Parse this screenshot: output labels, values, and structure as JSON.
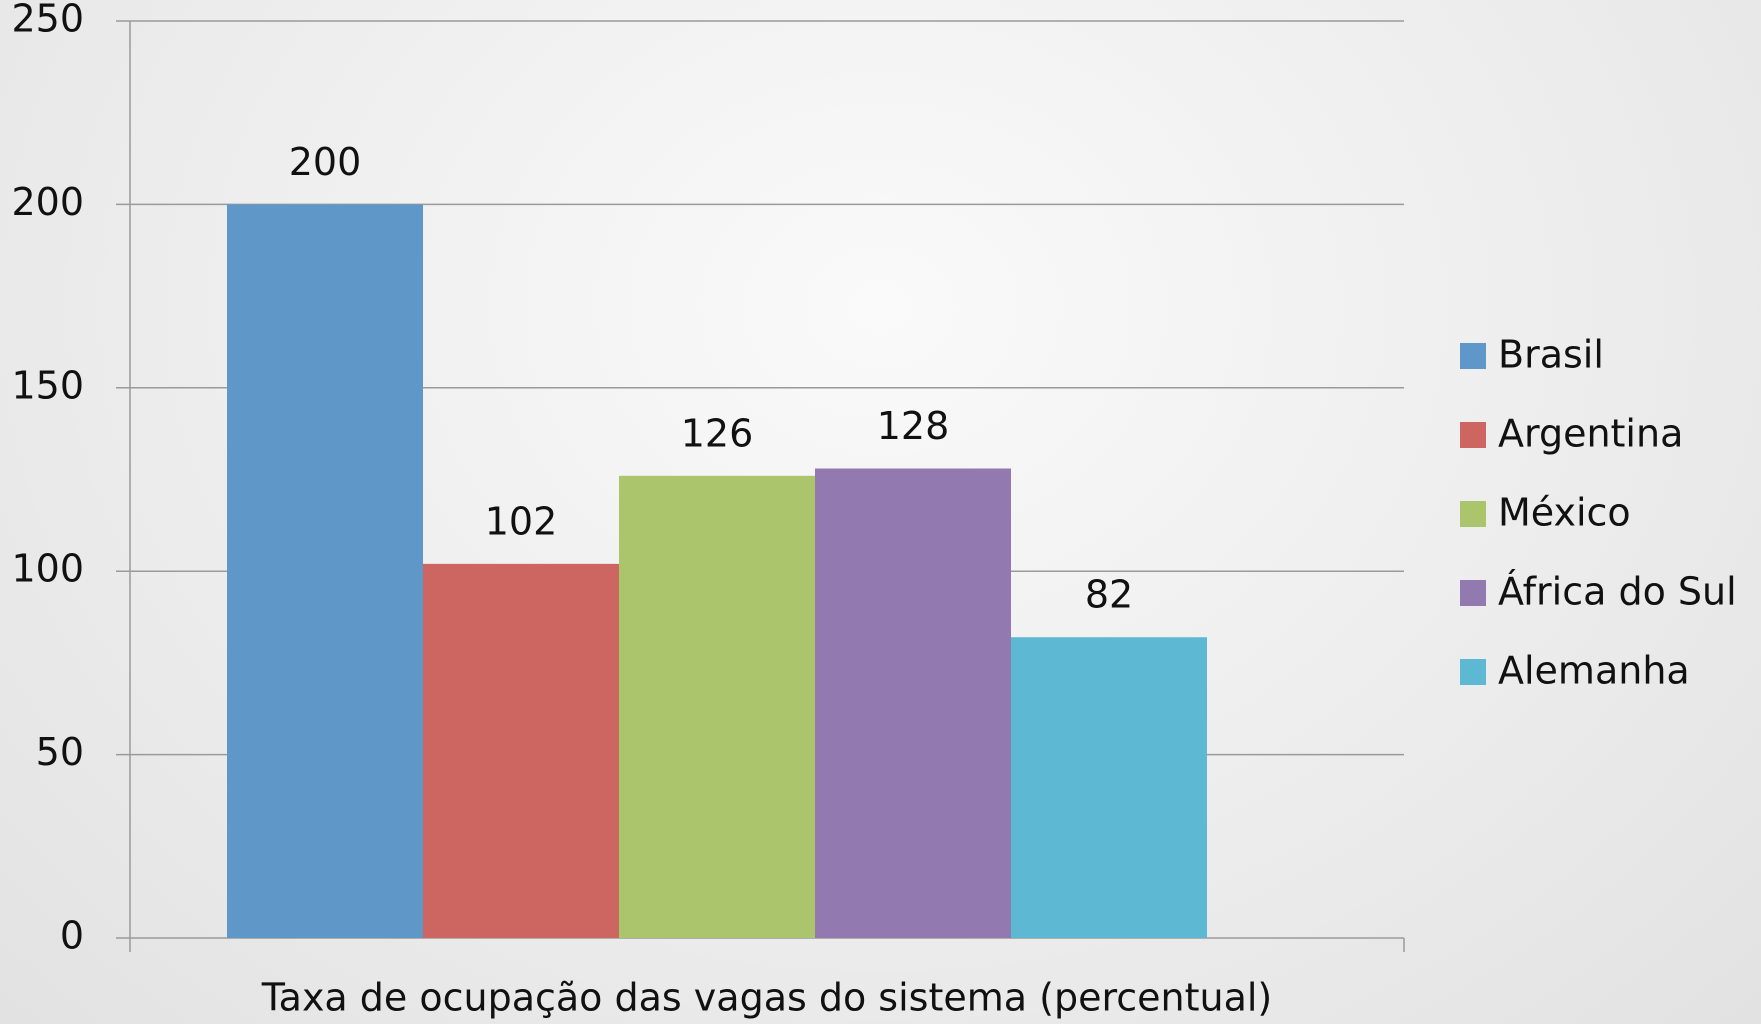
{
  "chart_data": {
    "type": "bar",
    "categories": [
      "Taxa de ocupação das vagas do sistema (percentual)"
    ],
    "series": [
      {
        "name": "Brasil",
        "color": "#6097c9",
        "values": [
          200
        ]
      },
      {
        "name": "Argentina",
        "color": "#cd6660",
        "values": [
          102
        ]
      },
      {
        "name": "México",
        "color": "#abc56d",
        "values": [
          126
        ]
      },
      {
        "name": "África do Sul",
        "color": "#927ab0",
        "values": [
          128
        ]
      },
      {
        "name": "Alemanha",
        "color": "#5db9d3",
        "values": [
          82
        ]
      }
    ],
    "ylim": [
      0,
      250
    ],
    "yticks": [
      0,
      50,
      100,
      150,
      200,
      250
    ],
    "grid": true,
    "legend": "right"
  }
}
